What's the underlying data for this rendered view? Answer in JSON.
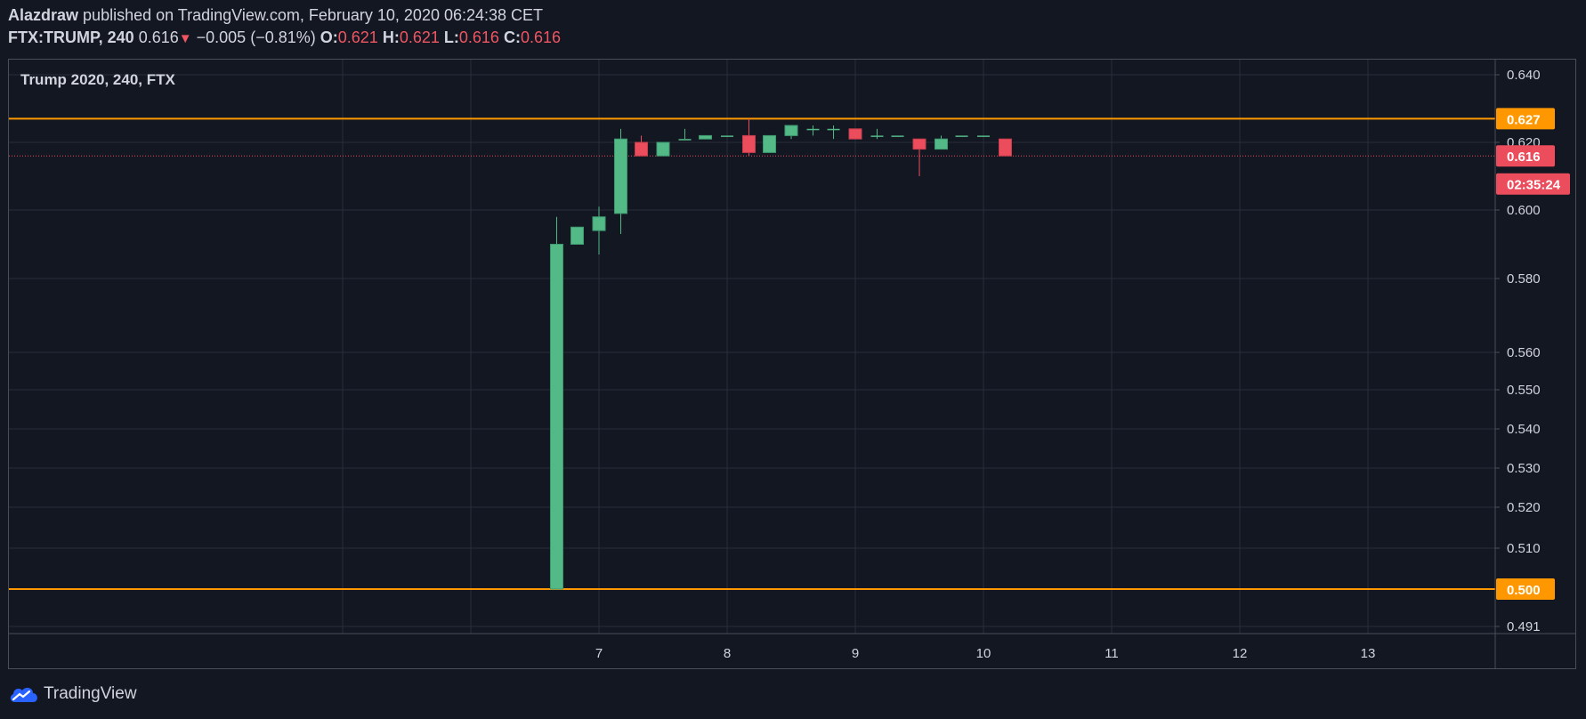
{
  "header": {
    "author": "Alazdraw",
    "published_text": "published on TradingView.com, February 10, 2020 06:24:38 CET",
    "symbol": "FTX:TRUMP, 240",
    "last": "0.616",
    "change": "−0.005 (−0.81%)",
    "o_label": "O:",
    "o_value": "0.621",
    "h_label": "H:",
    "h_value": "0.621",
    "l_label": "L:",
    "l_value": "0.616",
    "c_label": "C:",
    "c_value": "0.616"
  },
  "chart_label": "Trump 2020, 240, FTX",
  "branding": "TradingView",
  "icons": {
    "down_arrow": "down-triangle-icon",
    "logo": "tradingview-cloud-icon"
  },
  "colors": {
    "background": "#131722",
    "up": "#53b987",
    "down": "#eb4d5c",
    "hline": "#ff9800",
    "grid": "#2a2e39",
    "text": "#d1d4dc"
  },
  "chart_data": {
    "type": "candlestick",
    "x_ticks": [
      "7",
      "8",
      "9",
      "10",
      "11",
      "12",
      "13"
    ],
    "y_ticks": [
      "0.640",
      "0.620",
      "0.600",
      "0.580",
      "0.560",
      "0.550",
      "0.540",
      "0.530",
      "0.520",
      "0.510",
      "0.491"
    ],
    "price_labels": [
      {
        "text": "0.627",
        "value": 0.627,
        "kind": "hline"
      },
      {
        "text": "0.616",
        "value": 0.616,
        "kind": "last"
      },
      {
        "text": "02:35:24",
        "value": 0.6077,
        "kind": "countdown"
      },
      {
        "text": "0.500",
        "value": 0.5,
        "kind": "hline"
      }
    ],
    "horizontal_lines": [
      0.627,
      0.5
    ],
    "last_price_line": 0.616,
    "candles": [
      {
        "t": 6.67,
        "o": 0.5,
        "h": 0.598,
        "l": 0.5,
        "c": 0.59
      },
      {
        "t": 6.83,
        "o": 0.59,
        "h": 0.595,
        "l": 0.59,
        "c": 0.595
      },
      {
        "t": 7.0,
        "o": 0.594,
        "h": 0.601,
        "l": 0.587,
        "c": 0.598
      },
      {
        "t": 7.17,
        "o": 0.599,
        "h": 0.624,
        "l": 0.593,
        "c": 0.621
      },
      {
        "t": 7.33,
        "o": 0.62,
        "h": 0.622,
        "l": 0.616,
        "c": 0.616
      },
      {
        "t": 7.5,
        "o": 0.616,
        "h": 0.62,
        "l": 0.616,
        "c": 0.62
      },
      {
        "t": 7.67,
        "o": 0.621,
        "h": 0.624,
        "l": 0.621,
        "c": 0.621
      },
      {
        "t": 7.83,
        "o": 0.621,
        "h": 0.622,
        "l": 0.621,
        "c": 0.622
      },
      {
        "t": 8.0,
        "o": 0.622,
        "h": 0.622,
        "l": 0.622,
        "c": 0.622
      },
      {
        "t": 8.17,
        "o": 0.622,
        "h": 0.627,
        "l": 0.616,
        "c": 0.617
      },
      {
        "t": 8.33,
        "o": 0.617,
        "h": 0.622,
        "l": 0.617,
        "c": 0.622
      },
      {
        "t": 8.5,
        "o": 0.622,
        "h": 0.625,
        "l": 0.621,
        "c": 0.625
      },
      {
        "t": 8.67,
        "o": 0.624,
        "h": 0.625,
        "l": 0.622,
        "c": 0.624
      },
      {
        "t": 8.83,
        "o": 0.624,
        "h": 0.625,
        "l": 0.621,
        "c": 0.624
      },
      {
        "t": 9.0,
        "o": 0.624,
        "h": 0.624,
        "l": 0.621,
        "c": 0.621
      },
      {
        "t": 9.17,
        "o": 0.622,
        "h": 0.624,
        "l": 0.621,
        "c": 0.622
      },
      {
        "t": 9.33,
        "o": 0.622,
        "h": 0.622,
        "l": 0.622,
        "c": 0.622
      },
      {
        "t": 9.5,
        "o": 0.621,
        "h": 0.621,
        "l": 0.61,
        "c": 0.618
      },
      {
        "t": 9.67,
        "o": 0.618,
        "h": 0.622,
        "l": 0.618,
        "c": 0.621
      },
      {
        "t": 9.83,
        "o": 0.622,
        "h": 0.622,
        "l": 0.622,
        "c": 0.622
      },
      {
        "t": 10.0,
        "o": 0.622,
        "h": 0.622,
        "l": 0.622,
        "c": 0.622
      },
      {
        "t": 10.17,
        "o": 0.621,
        "h": 0.621,
        "l": 0.616,
        "c": 0.616
      }
    ],
    "grid": true
  }
}
